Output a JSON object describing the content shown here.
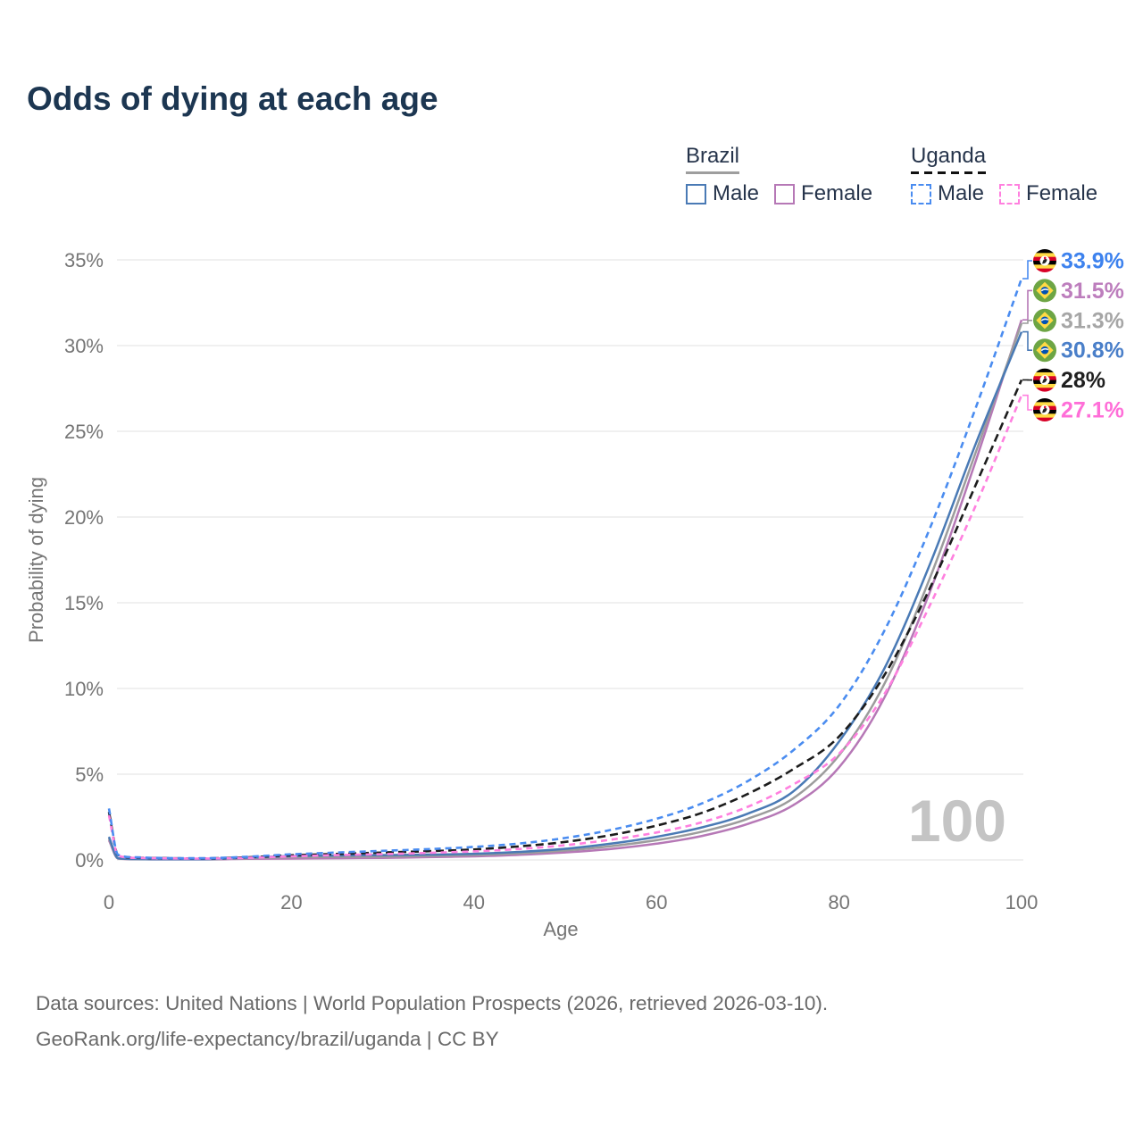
{
  "page": {
    "title": "Odds of dying at each age"
  },
  "legend": {
    "groups": [
      {
        "country": "Brazil",
        "line_style": "solid",
        "line_color": "#9e9e9e",
        "items": [
          {
            "label": "Male",
            "color": "#4a7ab5"
          },
          {
            "label": "Female",
            "color": "#b678b6"
          }
        ]
      },
      {
        "country": "Uganda",
        "line_style": "dashed",
        "line_color": "#111111",
        "items": [
          {
            "label": "Male",
            "color": "#4a8cf0"
          },
          {
            "label": "Female",
            "color": "#ff80df"
          }
        ]
      }
    ]
  },
  "chart_data": {
    "type": "line",
    "title": "Odds of dying at each age",
    "xlabel": "Age",
    "ylabel": "Probability of dying",
    "xlim": [
      0,
      100
    ],
    "ylim": [
      0,
      35
    ],
    "xticks": [
      0,
      20,
      40,
      60,
      80,
      100
    ],
    "yticks": [
      0,
      5,
      10,
      15,
      20,
      25,
      30,
      35
    ],
    "ytick_suffix": "%",
    "grid": "horizontal",
    "watermark": "100",
    "series": [
      {
        "id": "brazil_female",
        "name": "Brazil Female",
        "country": "brazil",
        "sex": "female",
        "color": "#b678b6",
        "dash": null,
        "end_value": 31.5,
        "end_label": "31.5%",
        "label_color": "#bd7ebd",
        "points": [
          [
            0,
            1.15
          ],
          [
            1,
            0.08
          ],
          [
            3,
            0.04
          ],
          [
            5,
            0.03
          ],
          [
            10,
            0.03
          ],
          [
            15,
            0.06
          ],
          [
            20,
            0.08
          ],
          [
            25,
            0.1
          ],
          [
            30,
            0.12
          ],
          [
            35,
            0.16
          ],
          [
            40,
            0.21
          ],
          [
            45,
            0.3
          ],
          [
            50,
            0.44
          ],
          [
            55,
            0.64
          ],
          [
            60,
            0.95
          ],
          [
            65,
            1.4
          ],
          [
            70,
            2.1
          ],
          [
            75,
            3.2
          ],
          [
            80,
            5.4
          ],
          [
            85,
            9.5
          ],
          [
            90,
            15.7
          ],
          [
            95,
            23.3
          ],
          [
            100,
            31.5
          ]
        ]
      },
      {
        "id": "brazil_total",
        "name": "Brazil",
        "country": "brazil",
        "sex": "total",
        "color": "#9c9c9c",
        "dash": null,
        "end_value": 31.3,
        "end_label": "31.3%",
        "label_color": "#a6a6a6",
        "points": [
          [
            0,
            1.25
          ],
          [
            1,
            0.09
          ],
          [
            3,
            0.045
          ],
          [
            5,
            0.035
          ],
          [
            10,
            0.035
          ],
          [
            15,
            0.1
          ],
          [
            20,
            0.16
          ],
          [
            25,
            0.18
          ],
          [
            30,
            0.2
          ],
          [
            35,
            0.24
          ],
          [
            40,
            0.29
          ],
          [
            45,
            0.39
          ],
          [
            50,
            0.55
          ],
          [
            55,
            0.8
          ],
          [
            60,
            1.15
          ],
          [
            65,
            1.65
          ],
          [
            70,
            2.4
          ],
          [
            75,
            3.6
          ],
          [
            80,
            6.1
          ],
          [
            85,
            10.3
          ],
          [
            90,
            16.5
          ],
          [
            95,
            23.8
          ],
          [
            100,
            31.3
          ]
        ]
      },
      {
        "id": "brazil_male",
        "name": "Brazil Male",
        "country": "brazil",
        "sex": "male",
        "color": "#4a7ab5",
        "dash": null,
        "end_value": 30.8,
        "end_label": "30.8%",
        "label_color": "#4a7fc9",
        "points": [
          [
            0,
            1.35
          ],
          [
            1,
            0.1
          ],
          [
            3,
            0.05
          ],
          [
            5,
            0.04
          ],
          [
            10,
            0.04
          ],
          [
            15,
            0.13
          ],
          [
            20,
            0.23
          ],
          [
            25,
            0.26
          ],
          [
            30,
            0.28
          ],
          [
            35,
            0.31
          ],
          [
            40,
            0.36
          ],
          [
            45,
            0.47
          ],
          [
            50,
            0.65
          ],
          [
            55,
            0.95
          ],
          [
            60,
            1.35
          ],
          [
            65,
            1.9
          ],
          [
            70,
            2.7
          ],
          [
            75,
            4.0
          ],
          [
            80,
            6.9
          ],
          [
            85,
            11.2
          ],
          [
            90,
            17.3
          ],
          [
            95,
            24.3
          ],
          [
            100,
            30.8
          ]
        ]
      },
      {
        "id": "uganda_total",
        "name": "Uganda",
        "country": "uganda",
        "sex": "total",
        "color": "#1c1c1c",
        "dash": "9 5",
        "end_value": 28.0,
        "end_label": "28%",
        "label_color": "#1f1f1f",
        "points": [
          [
            0,
            2.8
          ],
          [
            1,
            0.28
          ],
          [
            3,
            0.13
          ],
          [
            5,
            0.11
          ],
          [
            10,
            0.09
          ],
          [
            15,
            0.15
          ],
          [
            20,
            0.27
          ],
          [
            25,
            0.35
          ],
          [
            30,
            0.43
          ],
          [
            35,
            0.51
          ],
          [
            40,
            0.61
          ],
          [
            45,
            0.79
          ],
          [
            50,
            1.05
          ],
          [
            55,
            1.45
          ],
          [
            60,
            2.0
          ],
          [
            65,
            2.75
          ],
          [
            70,
            3.85
          ],
          [
            75,
            5.3
          ],
          [
            80,
            7.2
          ],
          [
            85,
            10.8
          ],
          [
            90,
            15.9
          ],
          [
            95,
            21.9
          ],
          [
            100,
            28.0
          ]
        ]
      },
      {
        "id": "uganda_female",
        "name": "Uganda Female",
        "country": "uganda",
        "sex": "female",
        "color": "#ff80df",
        "dash": "7 5",
        "end_value": 27.1,
        "end_label": "27.1%",
        "label_color": "#ff6ed8",
        "points": [
          [
            0,
            2.6
          ],
          [
            1,
            0.26
          ],
          [
            3,
            0.12
          ],
          [
            5,
            0.1
          ],
          [
            10,
            0.08
          ],
          [
            15,
            0.12
          ],
          [
            20,
            0.21
          ],
          [
            25,
            0.28
          ],
          [
            30,
            0.34
          ],
          [
            35,
            0.41
          ],
          [
            40,
            0.5
          ],
          [
            45,
            0.64
          ],
          [
            50,
            0.86
          ],
          [
            55,
            1.18
          ],
          [
            60,
            1.6
          ],
          [
            65,
            2.2
          ],
          [
            70,
            3.1
          ],
          [
            75,
            4.4
          ],
          [
            80,
            6.2
          ],
          [
            85,
            9.7
          ],
          [
            90,
            14.9
          ],
          [
            95,
            20.7
          ],
          [
            100,
            27.1
          ]
        ]
      },
      {
        "id": "uganda_male",
        "name": "Uganda Male",
        "country": "uganda",
        "sex": "male",
        "color": "#4a8cf0",
        "dash": "7 5",
        "end_value": 33.9,
        "end_label": "33.9%",
        "label_color": "#3d82ee",
        "points": [
          [
            0,
            3.0
          ],
          [
            1,
            0.3
          ],
          [
            3,
            0.15
          ],
          [
            5,
            0.12
          ],
          [
            10,
            0.1
          ],
          [
            15,
            0.18
          ],
          [
            20,
            0.33
          ],
          [
            25,
            0.43
          ],
          [
            30,
            0.53
          ],
          [
            35,
            0.63
          ],
          [
            40,
            0.76
          ],
          [
            45,
            0.96
          ],
          [
            50,
            1.28
          ],
          [
            55,
            1.75
          ],
          [
            60,
            2.4
          ],
          [
            65,
            3.3
          ],
          [
            70,
            4.6
          ],
          [
            75,
            6.4
          ],
          [
            80,
            9.0
          ],
          [
            85,
            13.4
          ],
          [
            90,
            19.4
          ],
          [
            95,
            26.4
          ],
          [
            100,
            33.9
          ]
        ]
      }
    ],
    "legend_position": "top-right"
  },
  "footer": {
    "line1": "Data sources: United Nations | World Population Prospects (2026, retrieved 2026-03-10).",
    "line2": "GeoRank.org/life-expectancy/brazil/uganda | CC BY"
  }
}
